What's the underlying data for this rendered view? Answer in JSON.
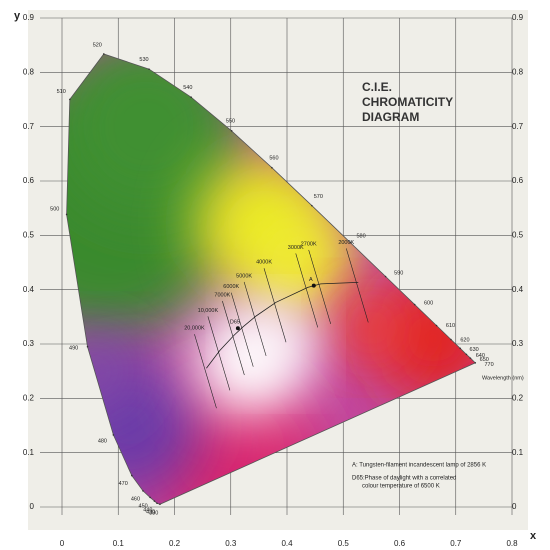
{
  "chart_data": {
    "type": "area",
    "title": [
      "C.I.E.",
      "CHROMATICITY",
      "DIAGRAM"
    ],
    "x_label": "x",
    "y_label": "y",
    "xlim": [
      0,
      0.8
    ],
    "ylim": [
      0,
      0.9
    ],
    "xticks": [
      0,
      0.1,
      0.2,
      0.3,
      0.4,
      0.5,
      0.6,
      0.7,
      0.8
    ],
    "yticks": [
      0,
      0.1,
      0.2,
      0.3,
      0.4,
      0.5,
      0.6,
      0.7,
      0.8,
      0.9
    ],
    "grid": true,
    "locus": {
      "wavelengths": [
        380,
        430,
        440,
        450,
        460,
        470,
        480,
        490,
        500,
        510,
        520,
        530,
        540,
        550,
        560,
        570,
        580,
        590,
        600,
        610,
        620,
        630,
        640,
        650,
        770
      ],
      "x": [
        0.1741,
        0.1689,
        0.1644,
        0.1566,
        0.144,
        0.1241,
        0.0913,
        0.0454,
        0.0082,
        0.0139,
        0.0743,
        0.1547,
        0.2296,
        0.3016,
        0.3731,
        0.4441,
        0.5125,
        0.5752,
        0.627,
        0.6658,
        0.6915,
        0.7079,
        0.719,
        0.726,
        0.7347
      ],
      "y": [
        0.005,
        0.0069,
        0.0109,
        0.0177,
        0.0297,
        0.0578,
        0.1327,
        0.295,
        0.5384,
        0.7502,
        0.8338,
        0.8059,
        0.7543,
        0.6923,
        0.6245,
        0.5547,
        0.4866,
        0.4242,
        0.3725,
        0.334,
        0.3083,
        0.292,
        0.2809,
        0.274,
        0.2653
      ]
    },
    "planckian": {
      "labels": [
        "20,000K",
        "10,000K",
        "7000K",
        "6000K",
        "5000K",
        "4000K",
        "3000K",
        "2700K",
        "2000K"
      ],
      "x": [
        0.2568,
        0.2807,
        0.3064,
        0.3222,
        0.3451,
        0.3805,
        0.4369,
        0.4599,
        0.5267
      ],
      "y": [
        0.2555,
        0.2883,
        0.3166,
        0.3318,
        0.3516,
        0.3768,
        0.4041,
        0.4106,
        0.4133
      ]
    },
    "points": [
      {
        "label": "A",
        "x": 0.4476,
        "y": 0.4074
      },
      {
        "label": "D65",
        "x": 0.3127,
        "y": 0.329
      }
    ],
    "wavelength_label": "Wavelength (nm)",
    "notes": [
      "A: Tungsten-filament incandescent lamp of 2856 K",
      "D65:Phase of daylight with a correlated",
      "colour temperature of 6500 K"
    ]
  }
}
